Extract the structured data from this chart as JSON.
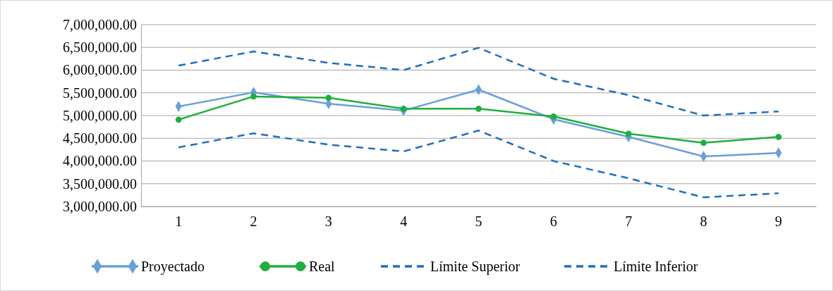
{
  "chart_data": {
    "type": "line",
    "categories": [
      "1",
      "2",
      "3",
      "4",
      "5",
      "6",
      "7",
      "8",
      "9"
    ],
    "series": [
      {
        "name": "Proyectado",
        "color": "#6a9fd8",
        "marker": "diamond",
        "line_style": "solid",
        "values": [
          5200000,
          5510000,
          5260000,
          5110000,
          5570000,
          4920000,
          4530000,
          4100000,
          4180000
        ]
      },
      {
        "name": "Real",
        "color": "#1fae3f",
        "marker": "circle",
        "line_style": "solid",
        "values": [
          4910000,
          5420000,
          5390000,
          5150000,
          5150000,
          4980000,
          4600000,
          4400000,
          4530000
        ]
      },
      {
        "name": "Límite Superior",
        "color": "#1f6fc0",
        "marker": "none",
        "line_style": "dashed",
        "values": [
          6100000,
          6410000,
          6160000,
          6000000,
          6490000,
          5810000,
          5450000,
          5000000,
          5090000
        ]
      },
      {
        "name": "Límite Inferior",
        "color": "#1f6fc0",
        "marker": "none",
        "line_style": "dashed",
        "values": [
          4300000,
          4610000,
          4360000,
          4210000,
          4670000,
          4000000,
          3620000,
          3200000,
          3290000
        ]
      }
    ],
    "ylim": [
      3000000,
      7000000
    ],
    "yticks": [
      {
        "value": 3000000,
        "label": "3,000,000.00"
      },
      {
        "value": 3500000,
        "label": "3,500,000.00"
      },
      {
        "value": 4000000,
        "label": "4,000,000.00"
      },
      {
        "value": 4500000,
        "label": "4,500,000.00"
      },
      {
        "value": 5000000,
        "label": "5,000,000.00"
      },
      {
        "value": 5500000,
        "label": "5,500,000.00"
      },
      {
        "value": 6000000,
        "label": "6,000,000.00"
      },
      {
        "value": 6500000,
        "label": "6,500,000.00"
      },
      {
        "value": 7000000,
        "label": "7,000,000.00"
      }
    ],
    "grid": "y",
    "legend": "bottom"
  }
}
